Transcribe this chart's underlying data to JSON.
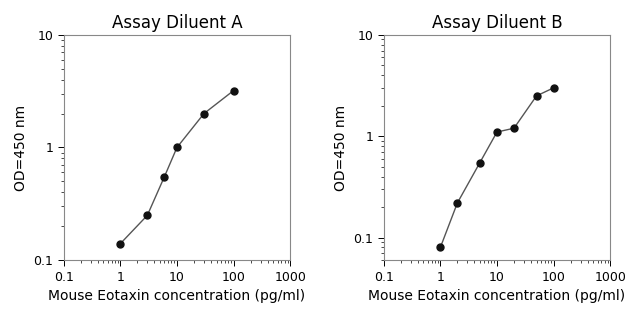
{
  "title_A": "Assay Diluent A",
  "title_B": "Assay Diluent B",
  "xlabel": "Mouse Eotaxin concentration (pg/ml)",
  "ylabel": "OD=450 nm",
  "x_A": [
    1,
    3,
    6,
    10,
    30,
    100
  ],
  "y_A": [
    0.14,
    0.25,
    0.55,
    1.0,
    2.0,
    3.2
  ],
  "x_B": [
    1,
    2,
    5,
    10,
    20,
    50,
    100
  ],
  "y_B": [
    0.08,
    0.22,
    0.55,
    1.1,
    1.2,
    2.5,
    3.0
  ],
  "xlim": [
    0.1,
    1000
  ],
  "ylim_A": [
    0.1,
    10
  ],
  "ylim_B": [
    0.06,
    10
  ],
  "line_color": "#555555",
  "marker_color": "#111111",
  "marker_size": 5,
  "title_fontsize": 12,
  "label_fontsize": 10,
  "tick_fontsize": 9,
  "tick_color": "#000000",
  "axis_color": "#888888",
  "bg_color": "#ffffff"
}
